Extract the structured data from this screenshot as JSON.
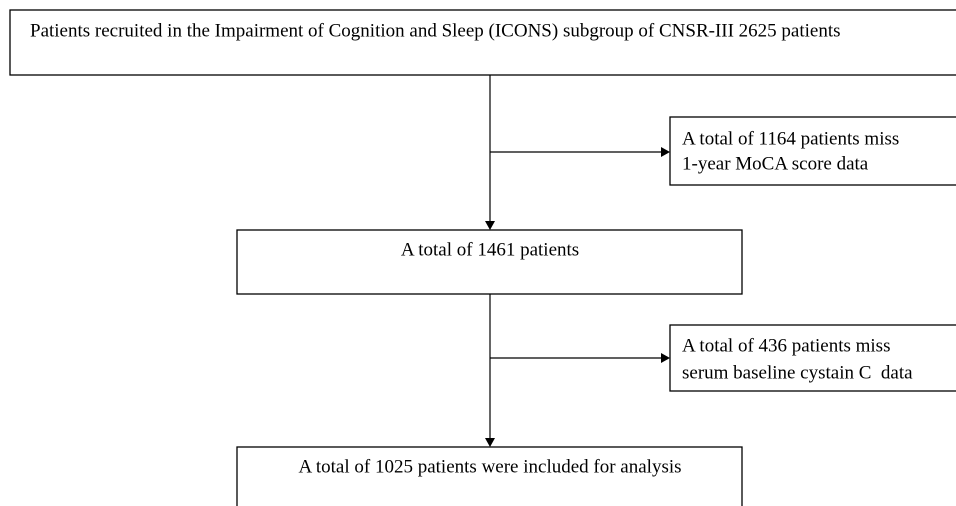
{
  "nodes": [
    {
      "label": "Patients recruited in the Impairment of Cognition and Sleep (ICONS) subgroup of CNSR-III 2625 patients"
    },
    {
      "lines": [
        "A total of 1164 patients miss",
        "1-year MoCA score data"
      ]
    },
    {
      "label": "A total of 1461 patients"
    },
    {
      "lines": [
        "A total of 436 patients miss",
        "serum baseline cystain C  data"
      ]
    },
    {
      "label": "A total of 1025 patients were included for analysis"
    }
  ]
}
